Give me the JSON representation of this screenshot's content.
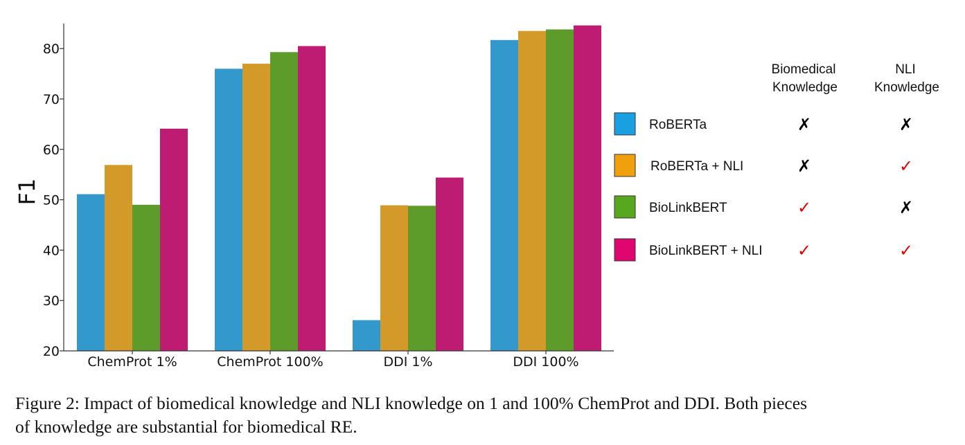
{
  "chart_data": {
    "type": "bar",
    "ylabel": "F1",
    "xlabel": "",
    "ylim": [
      20,
      85
    ],
    "yticks": [
      20,
      30,
      40,
      50,
      60,
      70,
      80
    ],
    "categories": [
      "ChemProt 1%",
      "ChemProt 100%",
      "DDI 1%",
      "DDI 100%"
    ],
    "series": [
      {
        "name": "RoBERTa",
        "color": "#3399cc",
        "legend_color": "#1a9fe0",
        "values": [
          51.1,
          76.0,
          26.1,
          81.7
        ],
        "biomedical": "✗",
        "nli": "✗"
      },
      {
        "name": "RoBERTa + NLI",
        "color": "#d39a2a",
        "legend_color": "#f0a00c",
        "values": [
          56.9,
          77.0,
          48.9,
          83.5
        ],
        "biomedical": "✗",
        "nli": "✓"
      },
      {
        "name": "BioLinkBERT",
        "color": "#5d9c2a",
        "legend_color": "#58a81f",
        "values": [
          49.0,
          79.3,
          48.8,
          83.8
        ],
        "biomedical": "✓",
        "nli": "✗"
      },
      {
        "name": "BioLinkBERT + NLI",
        "color": "#bd1c72",
        "legend_color": "#e0066f",
        "values": [
          64.1,
          80.5,
          54.4,
          84.6
        ],
        "biomedical": "✓",
        "nli": "✓"
      }
    ],
    "legend": {
      "placement": "right",
      "header_biomedical": [
        "Biomedical",
        "Knowledge"
      ],
      "header_nli": [
        "NLI",
        "Knowledge"
      ],
      "check_color": "#e00000",
      "cross_color": "#000000"
    }
  },
  "caption": {
    "line1": "Figure 2: Impact of biomedical knowledge and NLI knowledge on 1 and 100% ChemProt and DDI. Both pieces",
    "line2": "of knowledge are substantial for biomedical RE."
  }
}
